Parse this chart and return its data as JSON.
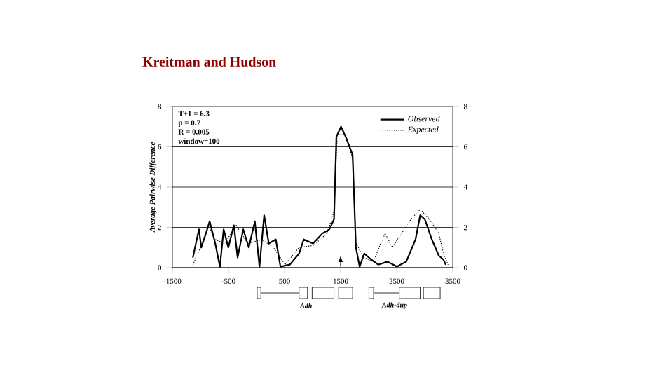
{
  "chart_data": {
    "type": "line",
    "title": "Kreitman and Hudson",
    "ylabel": "Average Pairwise Difference",
    "xlim": [
      -1500,
      3500
    ],
    "xticks": [
      -1500,
      -500,
      500,
      1500,
      2500,
      3500
    ],
    "ylim": [
      0,
      8
    ],
    "yticks": [
      0,
      2,
      4,
      6,
      8
    ],
    "y2lim": [
      0,
      8
    ],
    "y2ticks": [
      0,
      2,
      4,
      6,
      8
    ],
    "grid": "y",
    "legend": "top right",
    "annotations": [
      "T+1 = 6.3",
      "p = 0.7",
      "R = 0.005",
      "window=100",
      "Adh",
      "Adh-dup"
    ],
    "series": [
      {
        "name": "Observed",
        "color": "#000000",
        "line_style": "solid",
        "x": [
          -1135,
          -1027,
          -985,
          -902,
          -836,
          -736,
          -653,
          -586,
          -503,
          -404,
          -337,
          -237,
          -138,
          -30,
          53,
          136,
          219,
          344,
          427,
          593,
          759,
          842,
          1008,
          1175,
          1299,
          1382,
          1424,
          1507,
          1590,
          1714,
          1773,
          1839,
          1922,
          2047,
          2171,
          2337,
          2504,
          2670,
          2836,
          2919,
          3002,
          3127,
          3251,
          3334,
          3375
        ],
        "values": [
          0.5,
          1.9,
          1.0,
          1.7,
          2.3,
          1.2,
          0.05,
          1.9,
          1.0,
          2.1,
          0.5,
          1.9,
          1.0,
          2.3,
          0.05,
          2.6,
          1.2,
          1.4,
          0.05,
          0.15,
          0.7,
          1.4,
          1.2,
          1.7,
          1.9,
          2.4,
          6.5,
          7.0,
          6.5,
          5.6,
          1.0,
          0.05,
          0.7,
          0.4,
          0.15,
          0.3,
          0.05,
          0.3,
          1.4,
          2.6,
          2.4,
          1.4,
          0.6,
          0.4,
          0.15
        ]
      },
      {
        "name": "Expected",
        "color": "#000000",
        "line_style": "dotted",
        "x": [
          -1135,
          -985,
          -860,
          -736,
          -570,
          -362,
          -154,
          95,
          302,
          510,
          759,
          1008,
          1258,
          1382,
          1440,
          1590,
          1714,
          1773,
          1922,
          2088,
          2213,
          2296,
          2420,
          2586,
          2753,
          2919,
          3085,
          3251,
          3334,
          3417
        ],
        "values": [
          0.15,
          1.1,
          2.1,
          1.4,
          1.2,
          2.1,
          1.2,
          1.4,
          1.0,
          0.15,
          1.0,
          1.1,
          1.7,
          2.8,
          6.6,
          6.6,
          5.4,
          1.2,
          0.5,
          0.3,
          1.2,
          1.7,
          1.0,
          1.7,
          2.4,
          2.9,
          2.4,
          1.7,
          0.7,
          0.15
        ]
      }
    ]
  }
}
